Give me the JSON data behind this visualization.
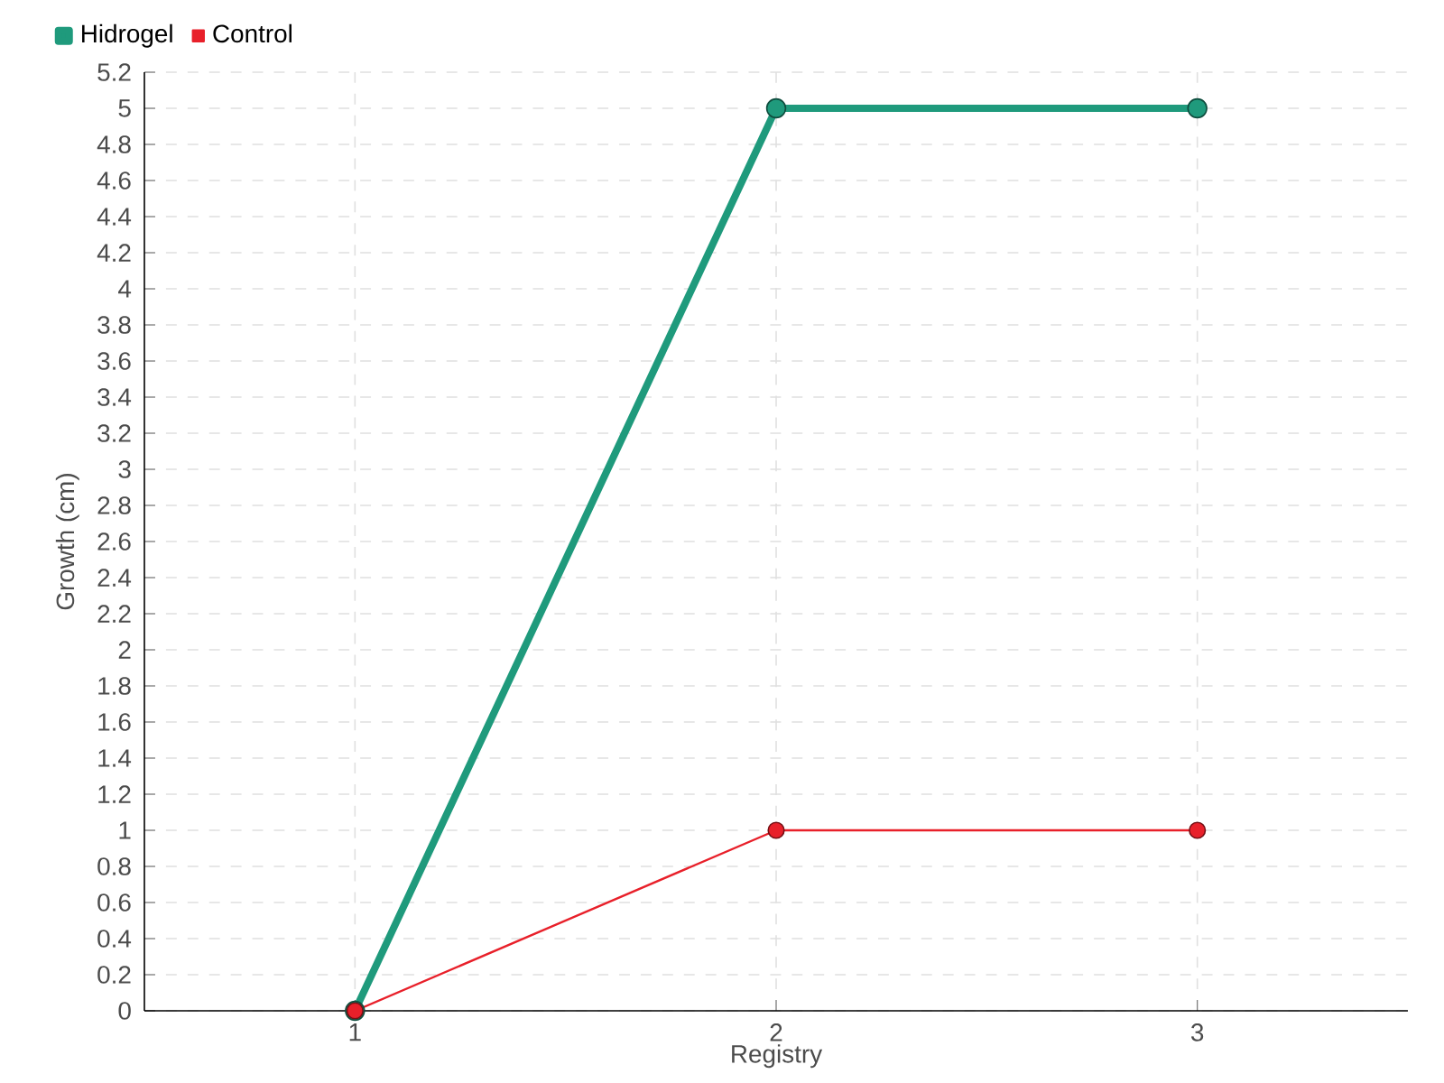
{
  "chart_data": {
    "type": "line",
    "xlabel": "Registry",
    "ylabel": "Growth (cm)",
    "categories": [
      "1",
      "2",
      "3"
    ],
    "series": [
      {
        "name": "Hidrogel",
        "color": "#1f9a7c",
        "values": [
          0,
          5,
          5
        ]
      },
      {
        "name": "Control",
        "color": "#e8202a",
        "values": [
          0,
          1,
          1
        ]
      }
    ],
    "ylim": [
      0,
      5.2
    ],
    "yticks": [
      0,
      0.2,
      0.4,
      0.6,
      0.8,
      1,
      1.2,
      1.4,
      1.6,
      1.8,
      2,
      2.2,
      2.4,
      2.6,
      2.8,
      3,
      3.2,
      3.4,
      3.6,
      3.8,
      4,
      4.2,
      4.4,
      4.6,
      4.8,
      5,
      5.2
    ],
    "grid": true,
    "legend": "top left",
    "marker": "circle",
    "line_style": "solid"
  }
}
